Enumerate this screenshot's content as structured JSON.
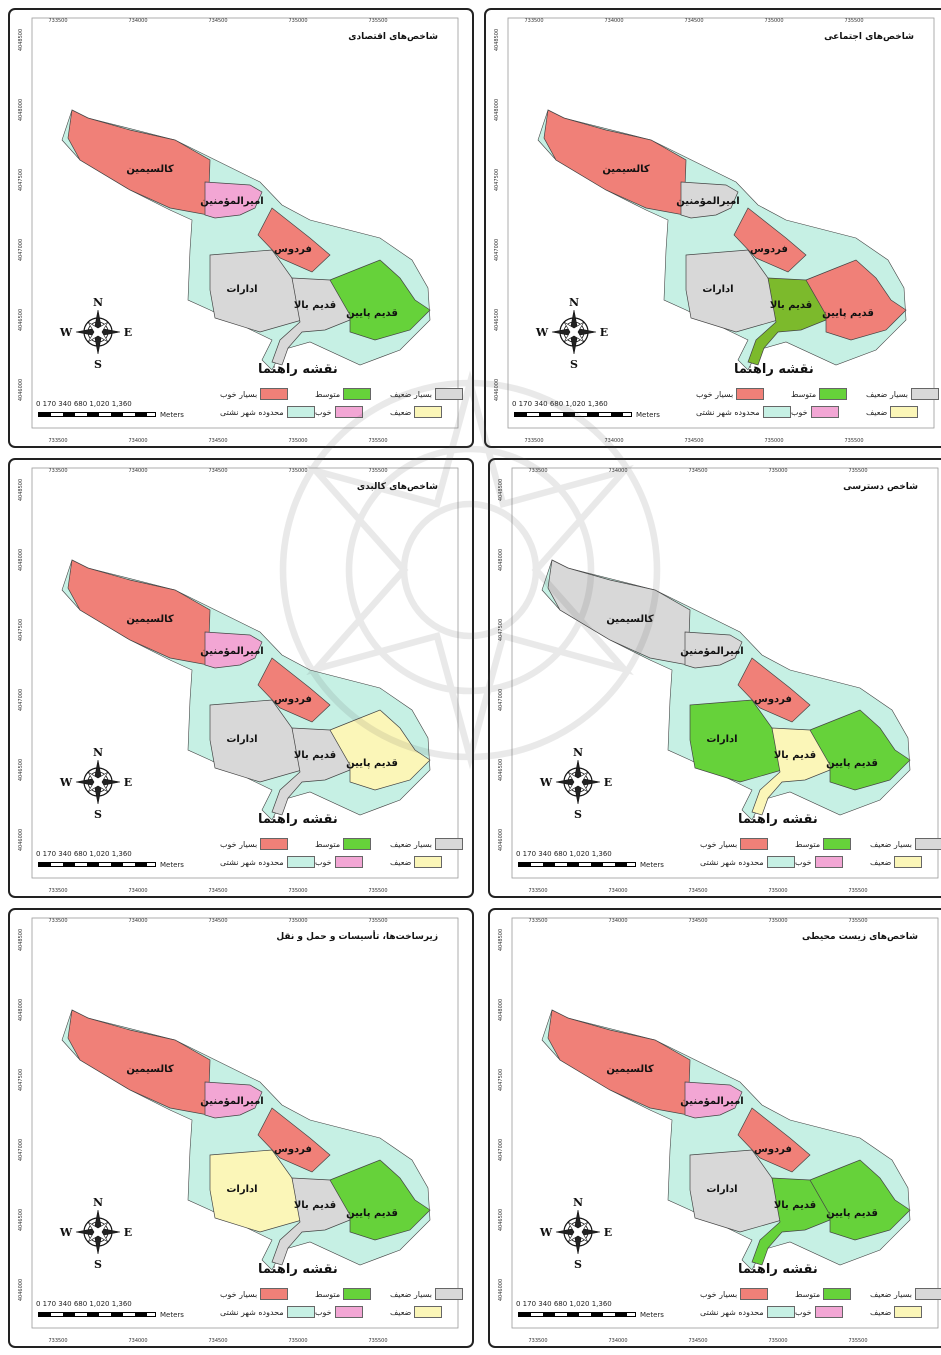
{
  "legend_title": "نقشه راهنما",
  "legend_classes": {
    "very_good": "بسیار خوب",
    "medium": "متوسط",
    "very_weak": "بسیار ضعیف",
    "boundary": "محدوده شهر نشتی",
    "good": "خوب",
    "weak": "ضعیف"
  },
  "colors": {
    "very_good": "#f08078",
    "medium": "#66d23a",
    "very_weak": "#d8d8d8",
    "boundary": "#c6f0e4",
    "good": "#f2a6d4",
    "weak": "#fbf6b8",
    "medium_dark": "#7cba2c"
  },
  "regions": {
    "kalsimin": "کالسیمین",
    "amir": "امیرالمؤمنین",
    "ferdows": "فردوس",
    "edarat": "ادارات",
    "ghadim_bala": "قدیم بالا",
    "ghadim_payin": "قدیم پایین"
  },
  "compass": {
    "n": "N",
    "s": "S",
    "e": "E",
    "w": "W"
  },
  "scale": {
    "labels": "0  170 340    680    1,020   1,360",
    "unit": "Meters"
  },
  "x_ticks": [
    "733500",
    "734000",
    "734500",
    "735000",
    "735500"
  ],
  "y_ticks": [
    "4048500",
    "4048000",
    "4047500",
    "4047000",
    "4046500",
    "4046000"
  ],
  "panels": [
    {
      "title": "شاخص‌های اقتصادی",
      "classes": {
        "kalsimin": "very_good",
        "amir": "good",
        "ferdows": "very_good",
        "edarat": "very_weak",
        "ghadim_bala": "very_weak",
        "ghadim_payin": "medium"
      }
    },
    {
      "title": "شاخص‌های اجتماعی",
      "classes": {
        "kalsimin": "very_good",
        "amir": "very_weak",
        "ferdows": "very_good",
        "edarat": "very_weak",
        "ghadim_bala": "medium_dark",
        "ghadim_payin": "very_good"
      }
    },
    {
      "title": "شاخص‌های کالبدی",
      "classes": {
        "kalsimin": "very_good",
        "amir": "good",
        "ferdows": "very_good",
        "edarat": "very_weak",
        "ghadim_bala": "very_weak",
        "ghadim_payin": "weak"
      }
    },
    {
      "title": "شاخص دسترسی",
      "classes": {
        "kalsimin": "very_weak",
        "amir": "very_weak",
        "ferdows": "very_good",
        "edarat": "medium",
        "ghadim_bala": "weak",
        "ghadim_payin": "medium"
      }
    },
    {
      "title": "زیرساخت‌ها، تأسیسات و حمل و نقل",
      "classes": {
        "kalsimin": "very_good",
        "amir": "good",
        "ferdows": "very_good",
        "edarat": "weak",
        "ghadim_bala": "very_weak",
        "ghadim_payin": "medium"
      }
    },
    {
      "title": "شاخص‌های زیست محیطی",
      "classes": {
        "kalsimin": "very_good",
        "amir": "good",
        "ferdows": "very_good",
        "edarat": "very_weak",
        "ghadim_bala": "medium",
        "ghadim_payin": "medium"
      }
    }
  ]
}
